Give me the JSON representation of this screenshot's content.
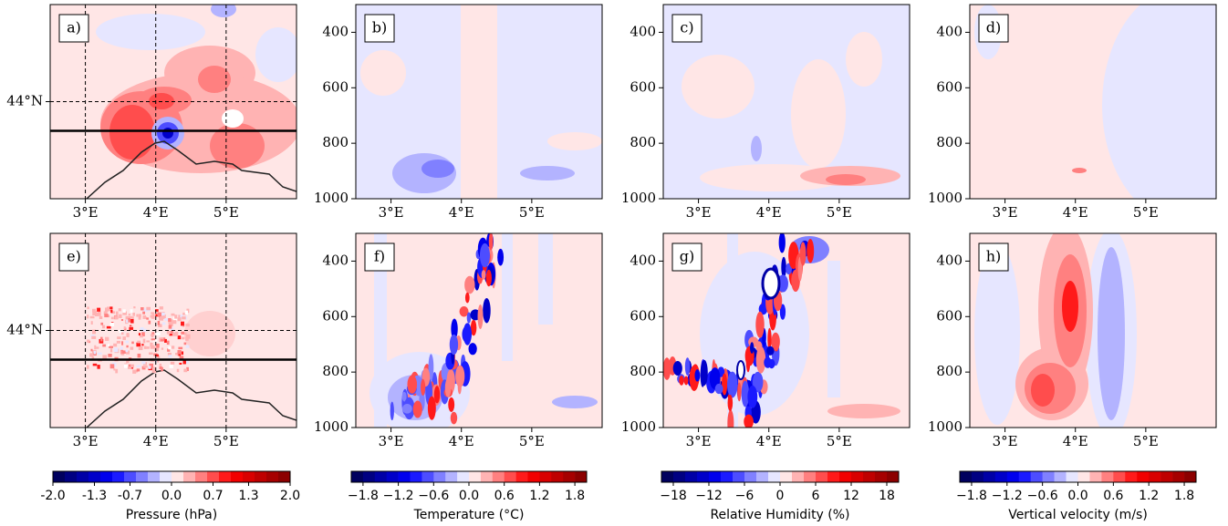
{
  "chart_data": [
    {
      "type": "map",
      "label": "a)",
      "xlim": [
        2.5,
        6.0
      ],
      "ylim": [
        43.0,
        45.0
      ],
      "xticks": [
        {
          "value": 3,
          "label": "3°E"
        },
        {
          "value": 4,
          "label": "4°E"
        },
        {
          "value": 5,
          "label": "5°E"
        }
      ],
      "yticks": [
        {
          "value": 44,
          "label": "44°N"
        }
      ],
      "grid": true,
      "section_lat": 43.7
    },
    {
      "type": "profile",
      "label": "b)",
      "xlim": [
        2.5,
        6.0
      ],
      "ylim": [
        1000,
        300
      ],
      "xticks": [
        {
          "value": 3,
          "label": "3°E"
        },
        {
          "value": 4,
          "label": "4°E"
        },
        {
          "value": 5,
          "label": "5°E"
        }
      ],
      "yticks": [
        400,
        600,
        800,
        1000
      ]
    },
    {
      "type": "profile",
      "label": "c)",
      "xlim": [
        2.5,
        6.0
      ],
      "ylim": [
        1000,
        300
      ],
      "xticks": [
        {
          "value": 3,
          "label": "3°E"
        },
        {
          "value": 4,
          "label": "4°E"
        },
        {
          "value": 5,
          "label": "5°E"
        }
      ],
      "yticks": [
        400,
        600,
        800,
        1000
      ]
    },
    {
      "type": "profile",
      "label": "d)",
      "xlim": [
        2.5,
        6.0
      ],
      "ylim": [
        1000,
        300
      ],
      "xticks": [
        {
          "value": 3,
          "label": "3°E"
        },
        {
          "value": 4,
          "label": "4°E"
        },
        {
          "value": 5,
          "label": "5°E"
        }
      ],
      "yticks": [
        400,
        600,
        800,
        1000
      ]
    },
    {
      "type": "map",
      "label": "e)",
      "xlim": [
        2.5,
        6.0
      ],
      "ylim": [
        43.0,
        45.0
      ],
      "xticks": [
        {
          "value": 3,
          "label": "3°E"
        },
        {
          "value": 4,
          "label": "4°E"
        },
        {
          "value": 5,
          "label": "5°E"
        }
      ],
      "yticks": [
        {
          "value": 44,
          "label": "44°N"
        }
      ],
      "grid": true,
      "section_lat": 43.7
    },
    {
      "type": "profile",
      "label": "f)",
      "xlim": [
        2.5,
        6.0
      ],
      "ylim": [
        1000,
        300
      ],
      "xticks": [
        {
          "value": 3,
          "label": "3°E"
        },
        {
          "value": 4,
          "label": "4°E"
        },
        {
          "value": 5,
          "label": "5°E"
        }
      ],
      "yticks": [
        400,
        600,
        800,
        1000
      ]
    },
    {
      "type": "profile",
      "label": "g)",
      "xlim": [
        2.5,
        6.0
      ],
      "ylim": [
        1000,
        300
      ],
      "xticks": [
        {
          "value": 3,
          "label": "3°E"
        },
        {
          "value": 4,
          "label": "4°E"
        },
        {
          "value": 5,
          "label": "5°E"
        }
      ],
      "yticks": [
        400,
        600,
        800,
        1000
      ]
    },
    {
      "type": "profile",
      "label": "h)",
      "xlim": [
        2.5,
        6.0
      ],
      "ylim": [
        1000,
        300
      ],
      "xticks": [
        {
          "value": 3,
          "label": "3°E"
        },
        {
          "value": 4,
          "label": "4°E"
        },
        {
          "value": 5,
          "label": "5°E"
        }
      ],
      "yticks": [
        400,
        600,
        800,
        1000
      ]
    }
  ],
  "colorbars": [
    {
      "label": "Pressure (hPa)",
      "lim": [
        -2,
        2
      ],
      "ticks": [
        {
          "value": -2,
          "label": "-2.0"
        },
        {
          "value": -1.3,
          "label": "-1.3"
        },
        {
          "value": -0.7,
          "label": "-0.7"
        },
        {
          "value": 0,
          "label": "0.0"
        },
        0.7,
        1.3,
        {
          "value": 2,
          "label": "2.0"
        }
      ]
    },
    {
      "label": "Temperature (°C)",
      "lim": [
        -2,
        2
      ],
      "ticks": [
        {
          "value": -1.8,
          "label": "−1.8"
        },
        {
          "value": -1.2,
          "label": "−1.2"
        },
        {
          "value": -0.6,
          "label": "−0.6"
        },
        {
          "value": 0,
          "label": "0.0"
        },
        0.6,
        1.2,
        1.8
      ]
    },
    {
      "label": "Relative Humidity (%)",
      "lim": [
        -20,
        20
      ],
      "ticks": [
        {
          "value": -18,
          "label": "−18"
        },
        {
          "value": -12,
          "label": "−12"
        },
        {
          "value": -6,
          "label": "−6"
        },
        0,
        6,
        12,
        18
      ]
    },
    {
      "label": "Vertical velocity (m/s)",
      "lim": [
        -2,
        2
      ],
      "ticks": [
        {
          "value": -1.8,
          "label": "−1.8"
        },
        {
          "value": -1.2,
          "label": "−1.2"
        },
        {
          "value": -0.6,
          "label": "−0.6"
        },
        {
          "value": 0,
          "label": "0.0"
        },
        0.6,
        1.2,
        1.8
      ]
    }
  ],
  "colormap": [
    "#00005e",
    "#000082",
    "#0000a6",
    "#0000c9",
    "#0000ed",
    "#1a1aff",
    "#4d4dff",
    "#8080ff",
    "#b3b3ff",
    "#e6e6ff",
    "#ffe6e6",
    "#ffb3b3",
    "#ff8080",
    "#ff4d4d",
    "#ff1a1a",
    "#f20000",
    "#d90000",
    "#bf0000",
    "#a60000",
    "#8c0000"
  ]
}
